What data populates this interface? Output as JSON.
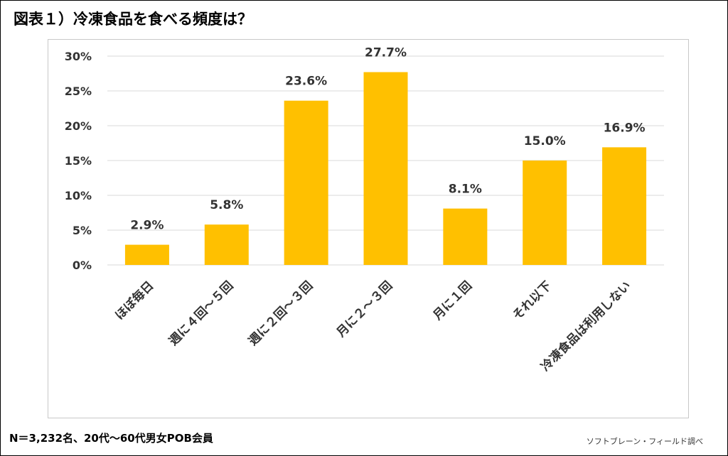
{
  "title": "図表１）冷凍食品を食べる頻度は？",
  "note": "N＝3,232名、20代〜60代男女POB会員",
  "source": "ソフトブレーン・フィールド調べ",
  "colors": {
    "bar": "#FFC000",
    "grid": "#D9D9D9",
    "text": "#333333"
  },
  "chart_data": {
    "type": "bar",
    "categories": [
      "ほぼ毎日",
      "週に４回〜５回",
      "週に２回〜３回",
      "月に２〜３回",
      "月に１回",
      "それ以下",
      "冷凍食品は利用しない"
    ],
    "values": [
      2.9,
      5.8,
      23.6,
      27.7,
      8.1,
      15.0,
      16.9
    ],
    "value_labels": [
      "2.9%",
      "5.8%",
      "23.6%",
      "27.7%",
      "8.1%",
      "15.0%",
      "16.9%"
    ],
    "y_ticks": [
      0,
      5,
      10,
      15,
      20,
      25,
      30
    ],
    "y_tick_labels": [
      "0%",
      "5%",
      "10%",
      "15%",
      "20%",
      "25%",
      "30%"
    ],
    "ylim": [
      0,
      30
    ],
    "grid": true,
    "legend": "none"
  }
}
